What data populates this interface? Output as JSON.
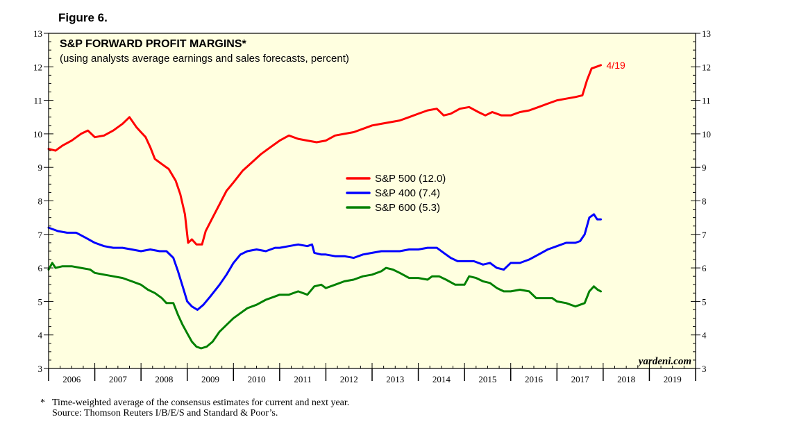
{
  "figure_label": "Figure 6.",
  "chart_data": {
    "type": "line",
    "title": "S&P FORWARD PROFIT MARGINS*",
    "subtitle": "(using analysts average earnings and sales forecasts, percent)",
    "xlabel": "",
    "ylabel": "",
    "ylim": [
      3,
      13
    ],
    "xlim": [
      2006,
      2020
    ],
    "yticks": [
      3,
      4,
      5,
      6,
      7,
      8,
      9,
      10,
      11,
      12,
      13
    ],
    "xtick_labels": [
      "2006",
      "2007",
      "2008",
      "2009",
      "2010",
      "2011",
      "2012",
      "2013",
      "2014",
      "2015",
      "2016",
      "2017",
      "2018",
      "2019"
    ],
    "legend_position": "center",
    "end_annotation": "4/19",
    "watermark": "yardeni.com",
    "series": [
      {
        "name": "S&P 500 (12.0)",
        "color": "#ff0000",
        "points": [
          [
            2006.0,
            9.55
          ],
          [
            2006.15,
            9.5
          ],
          [
            2006.3,
            9.65
          ],
          [
            2006.5,
            9.8
          ],
          [
            2006.7,
            10.0
          ],
          [
            2006.85,
            10.1
          ],
          [
            2007.0,
            9.9
          ],
          [
            2007.2,
            9.95
          ],
          [
            2007.4,
            10.1
          ],
          [
            2007.6,
            10.3
          ],
          [
            2007.75,
            10.5
          ],
          [
            2007.9,
            10.2
          ],
          [
            2008.0,
            10.05
          ],
          [
            2008.1,
            9.9
          ],
          [
            2008.2,
            9.6
          ],
          [
            2008.3,
            9.25
          ],
          [
            2008.45,
            9.1
          ],
          [
            2008.6,
            8.95
          ],
          [
            2008.75,
            8.6
          ],
          [
            2008.85,
            8.2
          ],
          [
            2008.95,
            7.6
          ],
          [
            2009.02,
            6.75
          ],
          [
            2009.1,
            6.85
          ],
          [
            2009.2,
            6.7
          ],
          [
            2009.32,
            6.7
          ],
          [
            2009.4,
            7.1
          ],
          [
            2009.55,
            7.5
          ],
          [
            2009.7,
            7.9
          ],
          [
            2009.85,
            8.3
          ],
          [
            2010.0,
            8.55
          ],
          [
            2010.2,
            8.9
          ],
          [
            2010.4,
            9.15
          ],
          [
            2010.6,
            9.4
          ],
          [
            2010.8,
            9.6
          ],
          [
            2011.0,
            9.8
          ],
          [
            2011.2,
            9.95
          ],
          [
            2011.4,
            9.85
          ],
          [
            2011.6,
            9.8
          ],
          [
            2011.8,
            9.75
          ],
          [
            2012.0,
            9.8
          ],
          [
            2012.2,
            9.95
          ],
          [
            2012.4,
            10.0
          ],
          [
            2012.6,
            10.05
          ],
          [
            2012.8,
            10.15
          ],
          [
            2013.0,
            10.25
          ],
          [
            2013.2,
            10.3
          ],
          [
            2013.4,
            10.35
          ],
          [
            2013.6,
            10.4
          ],
          [
            2013.8,
            10.5
          ],
          [
            2014.0,
            10.6
          ],
          [
            2014.2,
            10.7
          ],
          [
            2014.4,
            10.75
          ],
          [
            2014.55,
            10.55
          ],
          [
            2014.7,
            10.6
          ],
          [
            2014.9,
            10.75
          ],
          [
            2015.1,
            10.8
          ],
          [
            2015.3,
            10.65
          ],
          [
            2015.45,
            10.55
          ],
          [
            2015.6,
            10.65
          ],
          [
            2015.8,
            10.55
          ],
          [
            2016.0,
            10.55
          ],
          [
            2016.2,
            10.65
          ],
          [
            2016.4,
            10.7
          ],
          [
            2016.6,
            10.8
          ],
          [
            2016.8,
            10.9
          ],
          [
            2017.0,
            11.0
          ],
          [
            2017.2,
            11.05
          ],
          [
            2017.4,
            11.1
          ],
          [
            2017.55,
            11.15
          ],
          [
            2017.65,
            11.6
          ],
          [
            2017.75,
            11.95
          ],
          [
            2017.85,
            12.0
          ],
          [
            2017.95,
            12.05
          ]
        ]
      },
      {
        "name": "S&P 400 (7.4)",
        "color": "#0000ff",
        "points": [
          [
            2006.0,
            7.2
          ],
          [
            2006.2,
            7.1
          ],
          [
            2006.4,
            7.05
          ],
          [
            2006.6,
            7.05
          ],
          [
            2006.8,
            6.9
          ],
          [
            2007.0,
            6.75
          ],
          [
            2007.2,
            6.65
          ],
          [
            2007.4,
            6.6
          ],
          [
            2007.6,
            6.6
          ],
          [
            2007.8,
            6.55
          ],
          [
            2008.0,
            6.5
          ],
          [
            2008.2,
            6.55
          ],
          [
            2008.4,
            6.5
          ],
          [
            2008.55,
            6.5
          ],
          [
            2008.7,
            6.3
          ],
          [
            2008.8,
            5.9
          ],
          [
            2008.9,
            5.45
          ],
          [
            2009.0,
            5.0
          ],
          [
            2009.1,
            4.85
          ],
          [
            2009.22,
            4.75
          ],
          [
            2009.35,
            4.9
          ],
          [
            2009.5,
            5.15
          ],
          [
            2009.7,
            5.5
          ],
          [
            2009.85,
            5.8
          ],
          [
            2010.0,
            6.15
          ],
          [
            2010.15,
            6.4
          ],
          [
            2010.3,
            6.5
          ],
          [
            2010.5,
            6.55
          ],
          [
            2010.7,
            6.5
          ],
          [
            2010.9,
            6.6
          ],
          [
            2011.0,
            6.6
          ],
          [
            2011.2,
            6.65
          ],
          [
            2011.4,
            6.7
          ],
          [
            2011.6,
            6.65
          ],
          [
            2011.7,
            6.7
          ],
          [
            2011.75,
            6.45
          ],
          [
            2011.9,
            6.4
          ],
          [
            2012.0,
            6.4
          ],
          [
            2012.2,
            6.35
          ],
          [
            2012.4,
            6.35
          ],
          [
            2012.6,
            6.3
          ],
          [
            2012.8,
            6.4
          ],
          [
            2013.0,
            6.45
          ],
          [
            2013.2,
            6.5
          ],
          [
            2013.4,
            6.5
          ],
          [
            2013.6,
            6.5
          ],
          [
            2013.8,
            6.55
          ],
          [
            2014.0,
            6.55
          ],
          [
            2014.2,
            6.6
          ],
          [
            2014.4,
            6.6
          ],
          [
            2014.55,
            6.45
          ],
          [
            2014.7,
            6.3
          ],
          [
            2014.85,
            6.2
          ],
          [
            2015.0,
            6.2
          ],
          [
            2015.2,
            6.2
          ],
          [
            2015.4,
            6.1
          ],
          [
            2015.55,
            6.15
          ],
          [
            2015.7,
            6.0
          ],
          [
            2015.85,
            5.95
          ],
          [
            2016.0,
            6.15
          ],
          [
            2016.2,
            6.15
          ],
          [
            2016.4,
            6.25
          ],
          [
            2016.6,
            6.4
          ],
          [
            2016.8,
            6.55
          ],
          [
            2017.0,
            6.65
          ],
          [
            2017.2,
            6.75
          ],
          [
            2017.4,
            6.75
          ],
          [
            2017.5,
            6.8
          ],
          [
            2017.6,
            7.0
          ],
          [
            2017.7,
            7.5
          ],
          [
            2017.8,
            7.6
          ],
          [
            2017.87,
            7.45
          ],
          [
            2017.95,
            7.45
          ]
        ]
      },
      {
        "name": "S&P 600 (5.3)",
        "color": "#008000",
        "points": [
          [
            2006.0,
            5.95
          ],
          [
            2006.08,
            6.15
          ],
          [
            2006.15,
            6.0
          ],
          [
            2006.3,
            6.05
          ],
          [
            2006.5,
            6.05
          ],
          [
            2006.7,
            6.0
          ],
          [
            2006.9,
            5.95
          ],
          [
            2007.0,
            5.85
          ],
          [
            2007.2,
            5.8
          ],
          [
            2007.4,
            5.75
          ],
          [
            2007.6,
            5.7
          ],
          [
            2007.8,
            5.6
          ],
          [
            2008.0,
            5.5
          ],
          [
            2008.15,
            5.35
          ],
          [
            2008.3,
            5.25
          ],
          [
            2008.45,
            5.1
          ],
          [
            2008.55,
            4.95
          ],
          [
            2008.7,
            4.95
          ],
          [
            2008.8,
            4.6
          ],
          [
            2008.9,
            4.3
          ],
          [
            2009.0,
            4.05
          ],
          [
            2009.1,
            3.8
          ],
          [
            2009.2,
            3.65
          ],
          [
            2009.3,
            3.6
          ],
          [
            2009.42,
            3.65
          ],
          [
            2009.55,
            3.8
          ],
          [
            2009.7,
            4.1
          ],
          [
            2009.85,
            4.3
          ],
          [
            2010.0,
            4.5
          ],
          [
            2010.15,
            4.65
          ],
          [
            2010.3,
            4.8
          ],
          [
            2010.5,
            4.9
          ],
          [
            2010.7,
            5.05
          ],
          [
            2010.9,
            5.15
          ],
          [
            2011.0,
            5.2
          ],
          [
            2011.2,
            5.2
          ],
          [
            2011.4,
            5.3
          ],
          [
            2011.6,
            5.2
          ],
          [
            2011.75,
            5.45
          ],
          [
            2011.9,
            5.5
          ],
          [
            2012.0,
            5.4
          ],
          [
            2012.2,
            5.5
          ],
          [
            2012.4,
            5.6
          ],
          [
            2012.6,
            5.65
          ],
          [
            2012.8,
            5.75
          ],
          [
            2013.0,
            5.8
          ],
          [
            2013.2,
            5.9
          ],
          [
            2013.3,
            6.0
          ],
          [
            2013.45,
            5.95
          ],
          [
            2013.6,
            5.85
          ],
          [
            2013.8,
            5.7
          ],
          [
            2014.0,
            5.7
          ],
          [
            2014.2,
            5.65
          ],
          [
            2014.3,
            5.75
          ],
          [
            2014.45,
            5.75
          ],
          [
            2014.6,
            5.65
          ],
          [
            2014.8,
            5.5
          ],
          [
            2015.0,
            5.5
          ],
          [
            2015.1,
            5.75
          ],
          [
            2015.25,
            5.7
          ],
          [
            2015.4,
            5.6
          ],
          [
            2015.55,
            5.55
          ],
          [
            2015.7,
            5.4
          ],
          [
            2015.85,
            5.3
          ],
          [
            2016.0,
            5.3
          ],
          [
            2016.2,
            5.35
          ],
          [
            2016.4,
            5.3
          ],
          [
            2016.55,
            5.1
          ],
          [
            2016.7,
            5.1
          ],
          [
            2016.9,
            5.1
          ],
          [
            2017.0,
            5.0
          ],
          [
            2017.2,
            4.95
          ],
          [
            2017.4,
            4.85
          ],
          [
            2017.5,
            4.9
          ],
          [
            2017.6,
            4.95
          ],
          [
            2017.7,
            5.3
          ],
          [
            2017.8,
            5.45
          ],
          [
            2017.88,
            5.35
          ],
          [
            2017.95,
            5.3
          ]
        ]
      }
    ]
  },
  "footnote": {
    "star": "*",
    "line1": "Time-weighted average of the consensus estimates for current and next year.",
    "line2": "Source: Thomson Reuters I/B/E/S and Standard & Poor’s."
  }
}
